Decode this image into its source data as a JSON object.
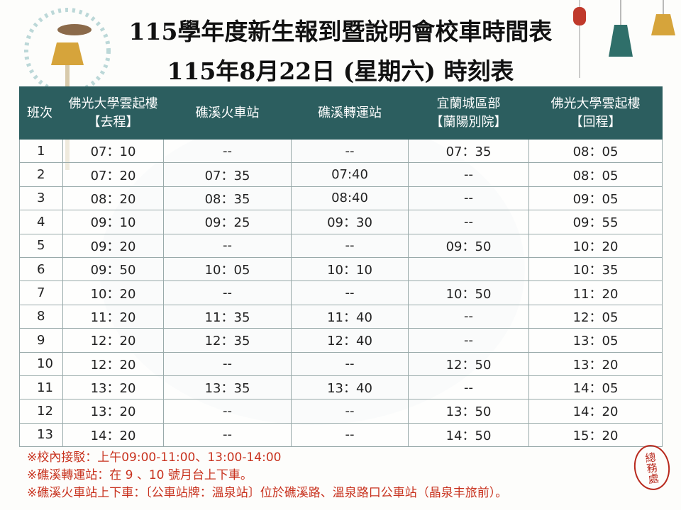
{
  "header": {
    "title_line1": "115學年度新生報到暨說明會校車時間表",
    "title_line2": "115年8月22日 (星期六)  時刻表"
  },
  "table": {
    "columns": [
      [
        "班次"
      ],
      [
        "佛光大學雲起樓",
        "【去程】"
      ],
      [
        "礁溪火車站"
      ],
      [
        "礁溪轉運站"
      ],
      [
        "宜蘭城區部",
        "【蘭陽別院】"
      ],
      [
        "佛光大學雲起樓",
        "【回程】"
      ]
    ],
    "rows": [
      [
        "1",
        "07：10",
        "--",
        "--",
        "07：35",
        "08：05"
      ],
      [
        "2",
        "07：20",
        "07：35",
        "07:40",
        "--",
        "08：05"
      ],
      [
        "3",
        "08：20",
        "08：35",
        "08:40",
        "--",
        "09：05"
      ],
      [
        "4",
        "09：10",
        "09：25",
        "09：30",
        "--",
        "09：55"
      ],
      [
        "5",
        "09：20",
        "--",
        "--",
        "09：50",
        "10：20"
      ],
      [
        "6",
        "09：50",
        "10：05",
        "10：10",
        null,
        "10：35"
      ],
      [
        "7",
        "10：20",
        "--",
        "--",
        "10：50",
        "11：20"
      ],
      [
        "8",
        "11：20",
        "11：35",
        "11：40",
        "--",
        "12：05"
      ],
      [
        "9",
        "12：20",
        "12：35",
        "12：40",
        "--",
        "13：05"
      ],
      [
        "10",
        "12：20",
        "--",
        "--",
        "12：50",
        "13：20"
      ],
      [
        "11",
        "13：20",
        "13：35",
        "13：40",
        "--",
        "14：05"
      ],
      [
        "12",
        "13：20",
        "--",
        "--",
        "13：50",
        "14：20"
      ],
      [
        "13",
        "14：20",
        "--",
        "--",
        "14：50",
        "15：20"
      ]
    ]
  },
  "notes": [
    "※校內接駁：上午09:00-11:00、13:00-14:00",
    "※礁溪轉運站：在 9 、10 號月台上下車。",
    "※礁溪火車站上下車：〔公車站牌：溫泉站〕位於礁溪路、溫泉路口公車站（晶泉丰旅前）。"
  ],
  "stamp": "總務處"
}
